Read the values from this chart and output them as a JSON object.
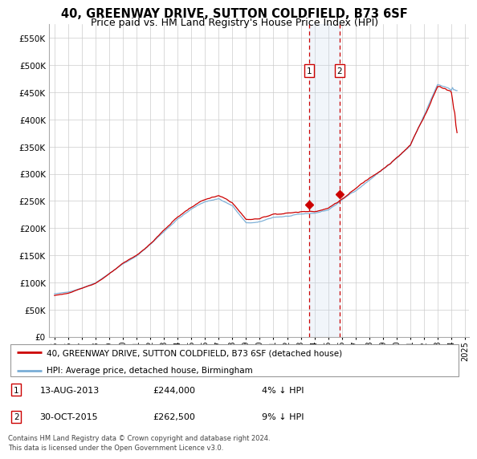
{
  "title": "40, GREENWAY DRIVE, SUTTON COLDFIELD, B73 6SF",
  "subtitle": "Price paid vs. HM Land Registry's House Price Index (HPI)",
  "title_fontsize": 10.5,
  "subtitle_fontsize": 9,
  "ylim": [
    0,
    575000
  ],
  "yticks": [
    0,
    50000,
    100000,
    150000,
    200000,
    250000,
    300000,
    350000,
    400000,
    450000,
    500000,
    550000
  ],
  "legend_property": "40, GREENWAY DRIVE, SUTTON COLDFIELD, B73 6SF (detached house)",
  "legend_hpi": "HPI: Average price, detached house, Birmingham",
  "marker1_date": "13-AUG-2013",
  "marker1_price": "£244,000",
  "marker1_hpi": "4% ↓ HPI",
  "marker1_year": 2013.615,
  "marker1_value": 244000,
  "marker2_date": "30-OCT-2015",
  "marker2_price": "£262,500",
  "marker2_hpi": "9% ↓ HPI",
  "marker2_year": 2015.83,
  "marker2_value": 262500,
  "property_color": "#cc0000",
  "hpi_color": "#7aaed6",
  "shade_color": "#c8d8ee",
  "background_color": "#ffffff",
  "grid_color": "#cccccc",
  "footer": "Contains HM Land Registry data © Crown copyright and database right 2024.\nThis data is licensed under the Open Government Licence v3.0."
}
